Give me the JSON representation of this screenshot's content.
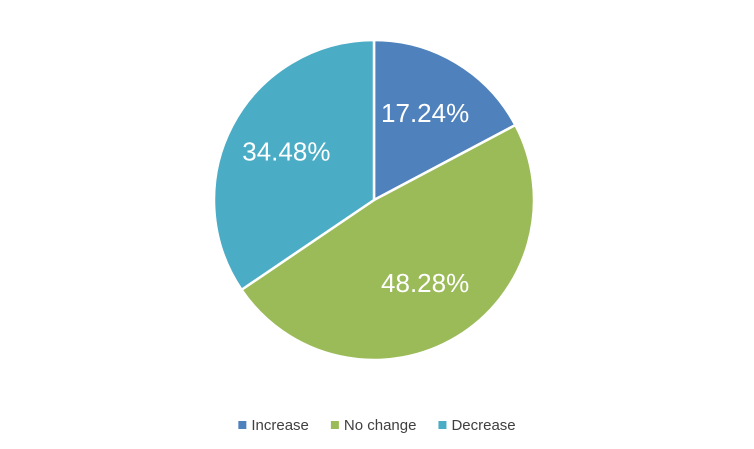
{
  "chart_data": {
    "type": "pie",
    "categories": [
      "Increase",
      "No change",
      "Decrease"
    ],
    "values": [
      17.24,
      48.28,
      34.48
    ],
    "value_labels": [
      "17.24%",
      "48.28%",
      "34.48%"
    ],
    "colors": [
      "#4f81bd",
      "#9bbb59",
      "#4bacc6"
    ],
    "legend": "bottom"
  }
}
